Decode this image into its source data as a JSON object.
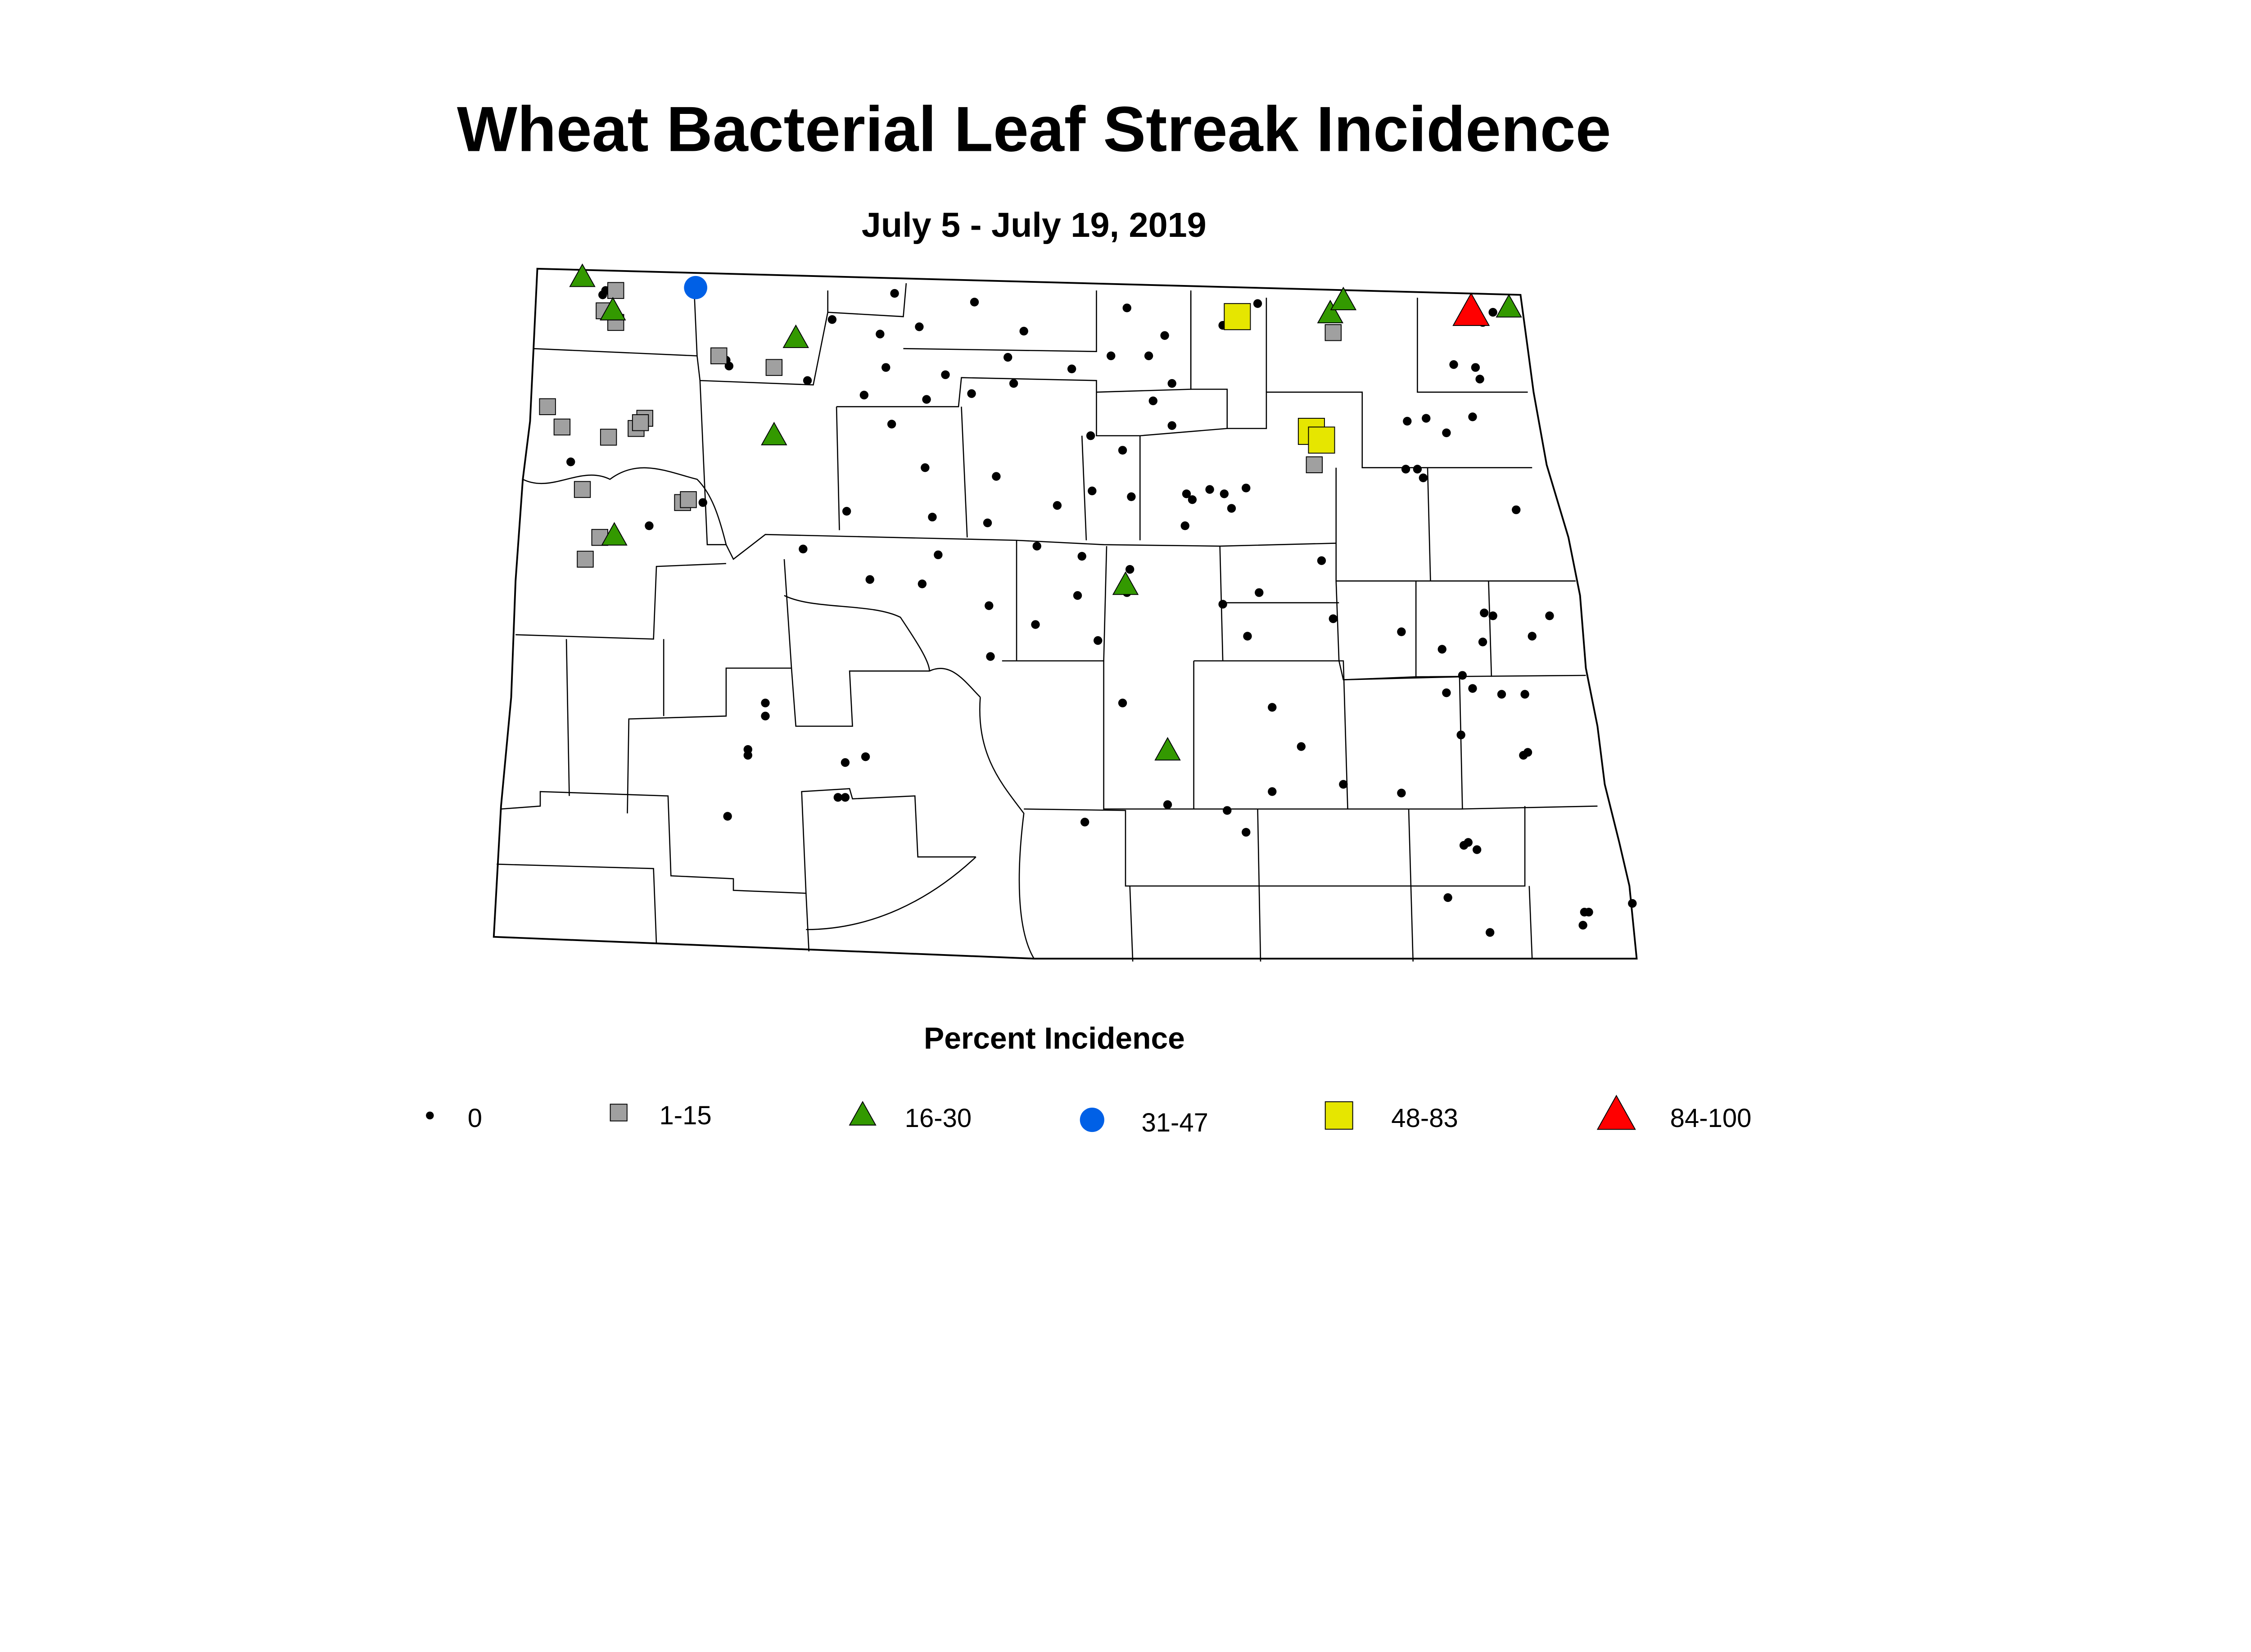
{
  "title": "Wheat Bacterial Leaf Streak Incidence",
  "subtitle": "July 5 - July 19, 2019",
  "legend": {
    "title": "Percent Incidence",
    "items": [
      {
        "label": "0",
        "symbol": "dot",
        "color": "#000000"
      },
      {
        "label": "1-15",
        "symbol": "square",
        "color": "#a0a0a0"
      },
      {
        "label": "16-30",
        "symbol": "triangle",
        "color": "#339900"
      },
      {
        "label": "31-47",
        "symbol": "circle",
        "color": "#0060e6"
      },
      {
        "label": "48-83",
        "symbol": "square",
        "color": "#e6e600"
      },
      {
        "label": "84-100",
        "symbol": "triangle",
        "color": "#ff0000"
      }
    ]
  }
}
